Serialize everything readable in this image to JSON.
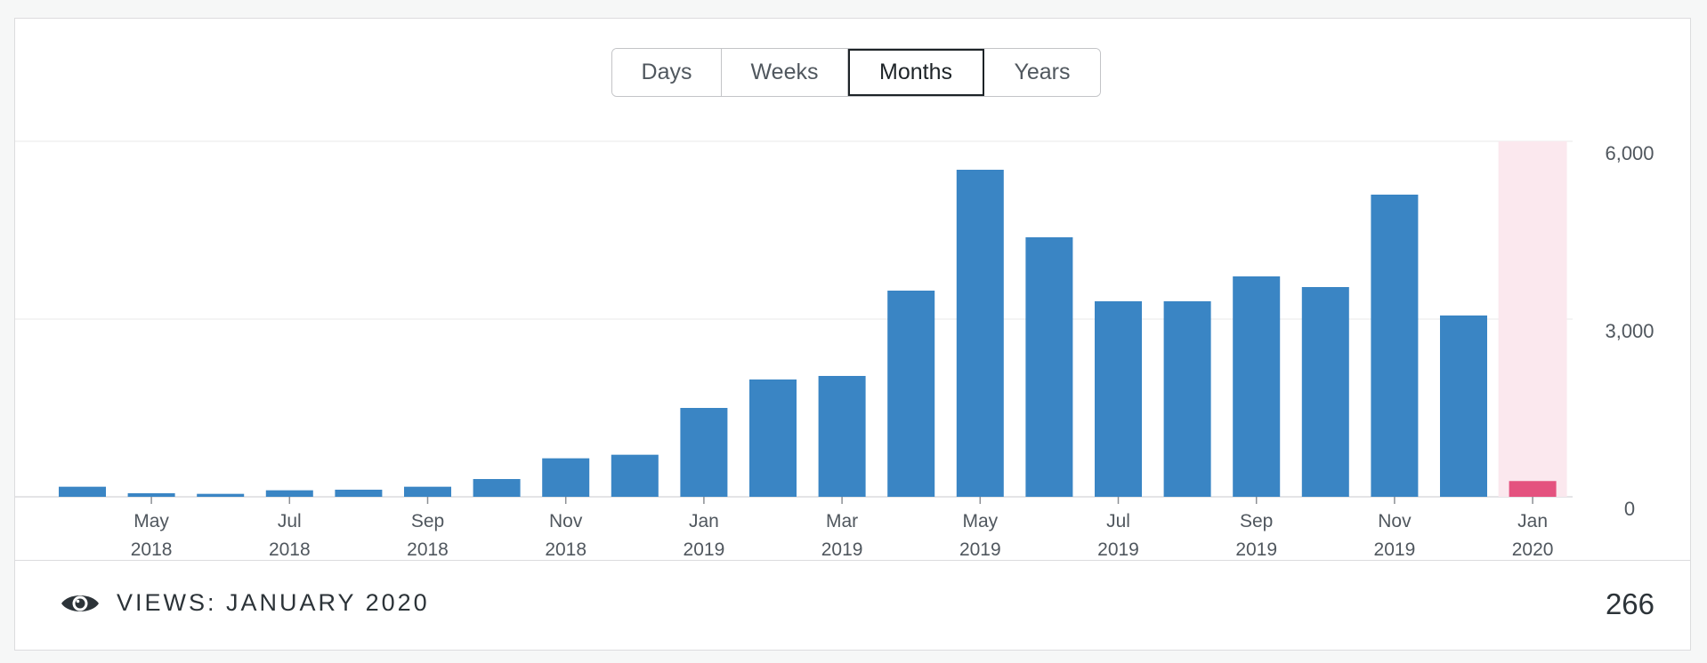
{
  "period_toggle": {
    "options": [
      {
        "label": "Days"
      },
      {
        "label": "Weeks"
      },
      {
        "label": "Months"
      },
      {
        "label": "Years"
      }
    ],
    "selected": "Months"
  },
  "colors": {
    "bar": "#3a85c4",
    "bar_selected": "#e4527f",
    "selected_band": "#fbe8ee",
    "grid": "#f0f0f1",
    "axis": "#dcdcde",
    "tick_text": "#50575e"
  },
  "chart_data": {
    "type": "bar",
    "categories": [
      "Apr 2018",
      "May 2018",
      "Jun 2018",
      "Jul 2018",
      "Aug 2018",
      "Sep 2018",
      "Oct 2018",
      "Nov 2018",
      "Dec 2018",
      "Jan 2019",
      "Feb 2019",
      "Mar 2019",
      "Apr 2019",
      "May 2019",
      "Jun 2019",
      "Jul 2019",
      "Aug 2019",
      "Sep 2019",
      "Oct 2019",
      "Nov 2019",
      "Dec 2019",
      "Jan 2020"
    ],
    "values": [
      170,
      60,
      50,
      110,
      120,
      170,
      300,
      650,
      710,
      1500,
      1980,
      2040,
      3480,
      5520,
      4380,
      3300,
      3300,
      3720,
      3540,
      5100,
      3060,
      266
    ],
    "x_tick_labels": [
      {
        "index": 1,
        "month": "May",
        "year": "2018"
      },
      {
        "index": 3,
        "month": "Jul",
        "year": "2018"
      },
      {
        "index": 5,
        "month": "Sep",
        "year": "2018"
      },
      {
        "index": 7,
        "month": "Nov",
        "year": "2018"
      },
      {
        "index": 9,
        "month": "Jan",
        "year": "2019"
      },
      {
        "index": 11,
        "month": "Mar",
        "year": "2019"
      },
      {
        "index": 13,
        "month": "May",
        "year": "2019"
      },
      {
        "index": 15,
        "month": "Jul",
        "year": "2019"
      },
      {
        "index": 17,
        "month": "Sep",
        "year": "2019"
      },
      {
        "index": 19,
        "month": "Nov",
        "year": "2019"
      },
      {
        "index": 21,
        "month": "Jan",
        "year": "2020"
      }
    ],
    "y_ticks": [
      {
        "value": 0,
        "label": "0"
      },
      {
        "value": 3000,
        "label": "3,000"
      },
      {
        "value": 6000,
        "label": "6,000"
      }
    ],
    "ylim": [
      0,
      6000
    ],
    "selected_index": 21,
    "grid": true,
    "title": "",
    "xlabel": "",
    "ylabel": ""
  },
  "summary": {
    "label": "VIEWS: JANUARY 2020",
    "value": "266"
  },
  "icons": {
    "views": "eye-icon"
  }
}
